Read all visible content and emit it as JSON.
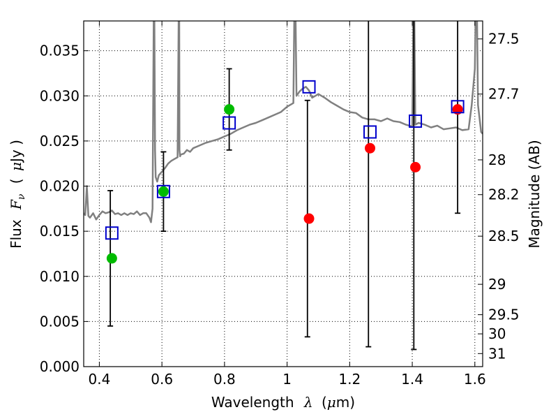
{
  "chart_data": {
    "type": "scatter",
    "title": "",
    "xlabel": {
      "prefix": "Wavelength",
      "symbol": "λ",
      "unit_open": "(",
      "unit_mu": "μ",
      "unit_rest": "m)"
    },
    "ylabel": {
      "prefix": "Flux",
      "symbol": "F",
      "subscript": "ν",
      "unit_open": "(",
      "unit_mu": "μ",
      "unit_rest": "Jy )"
    },
    "y2label": "Magnitude (AB)",
    "xlim": [
      0.35,
      1.625
    ],
    "ylim": [
      0.0,
      0.0383
    ],
    "grid": true,
    "x_ticks": [
      {
        "value": 0.4,
        "label": "0.4"
      },
      {
        "value": 0.6,
        "label": "0.6"
      },
      {
        "value": 0.8,
        "label": "0.8"
      },
      {
        "value": 1.0,
        "label": "1"
      },
      {
        "value": 1.2,
        "label": "1.2"
      },
      {
        "value": 1.4,
        "label": "1.4"
      },
      {
        "value": 1.6,
        "label": "1.6"
      }
    ],
    "y_ticks": [
      {
        "value": 0.0,
        "label": "0.000"
      },
      {
        "value": 0.005,
        "label": "0.005"
      },
      {
        "value": 0.01,
        "label": "0.010"
      },
      {
        "value": 0.015,
        "label": "0.015"
      },
      {
        "value": 0.02,
        "label": "0.020"
      },
      {
        "value": 0.025,
        "label": "0.025"
      },
      {
        "value": 0.03,
        "label": "0.030"
      },
      {
        "value": 0.035,
        "label": "0.035"
      }
    ],
    "y2_ticks": [
      {
        "value": 27.5,
        "label": "27.5"
      },
      {
        "value": 27.7,
        "label": "27.7"
      },
      {
        "value": 28.0,
        "label": "28"
      },
      {
        "value": 28.2,
        "label": "28.2"
      },
      {
        "value": 28.5,
        "label": "28.5"
      },
      {
        "value": 29.0,
        "label": "29"
      },
      {
        "value": 29.5,
        "label": "29.5"
      },
      {
        "value": 30.0,
        "label": "30"
      },
      {
        "value": 31.0,
        "label": "31"
      }
    ],
    "series": [
      {
        "kind": "line",
        "color": "#808080",
        "x": [
          0.35,
          0.355,
          0.36,
          0.365,
          0.37,
          0.38,
          0.39,
          0.4,
          0.41,
          0.42,
          0.43,
          0.44,
          0.45,
          0.46,
          0.47,
          0.48,
          0.49,
          0.5,
          0.51,
          0.52,
          0.53,
          0.54,
          0.55,
          0.56,
          0.565,
          0.57,
          0.575,
          0.578,
          0.58,
          0.585,
          0.59,
          0.6,
          0.61,
          0.62,
          0.63,
          0.64,
          0.65,
          0.655,
          0.656,
          0.658,
          0.66,
          0.67,
          0.68,
          0.69,
          0.7,
          0.72,
          0.74,
          0.76,
          0.78,
          0.8,
          0.82,
          0.84,
          0.86,
          0.88,
          0.9,
          0.92,
          0.94,
          0.96,
          0.98,
          1.0,
          1.02,
          1.025,
          1.03,
          1.04,
          1.05,
          1.06,
          1.07,
          1.08,
          1.09,
          1.1,
          1.12,
          1.14,
          1.16,
          1.18,
          1.2,
          1.22,
          1.24,
          1.26,
          1.28,
          1.3,
          1.32,
          1.34,
          1.36,
          1.38,
          1.4,
          1.405,
          1.41,
          1.42,
          1.44,
          1.46,
          1.48,
          1.5,
          1.52,
          1.54,
          1.56,
          1.58,
          1.59,
          1.6,
          1.605,
          1.61,
          1.62,
          1.625
        ],
        "y": [
          0.017,
          0.0168,
          0.02,
          0.0167,
          0.0165,
          0.017,
          0.0163,
          0.0168,
          0.0172,
          0.017,
          0.0171,
          0.0173,
          0.0169,
          0.017,
          0.0168,
          0.017,
          0.0168,
          0.017,
          0.0169,
          0.0172,
          0.0168,
          0.017,
          0.017,
          0.0165,
          0.016,
          0.0175,
          0.045,
          0.024,
          0.021,
          0.0205,
          0.0212,
          0.0216,
          0.022,
          0.0225,
          0.0228,
          0.023,
          0.0232,
          0.045,
          0.024,
          0.0233,
          0.0235,
          0.0236,
          0.024,
          0.0238,
          0.0242,
          0.0245,
          0.0248,
          0.025,
          0.0252,
          0.0255,
          0.0258,
          0.0262,
          0.0265,
          0.0268,
          0.027,
          0.0273,
          0.0276,
          0.0279,
          0.0282,
          0.0288,
          0.0292,
          0.045,
          0.03,
          0.0305,
          0.0308,
          0.031,
          0.0306,
          0.0298,
          0.03,
          0.0302,
          0.0298,
          0.0293,
          0.0289,
          0.0285,
          0.0282,
          0.0281,
          0.0276,
          0.0274,
          0.0274,
          0.0272,
          0.0275,
          0.0272,
          0.0271,
          0.0268,
          0.0266,
          0.045,
          0.0268,
          0.027,
          0.0268,
          0.0265,
          0.0267,
          0.0263,
          0.0264,
          0.0265,
          0.0262,
          0.0263,
          0.029,
          0.033,
          0.045,
          0.029,
          0.026,
          0.0258
        ]
      },
      {
        "kind": "errorbar",
        "color": "#000000",
        "points": [
          {
            "x": 0.435,
            "low": 0.0045,
            "high": 0.0195
          },
          {
            "x": 0.605,
            "low": 0.015,
            "high": 0.0238
          },
          {
            "x": 0.815,
            "low": 0.024,
            "high": 0.033
          },
          {
            "x": 1.065,
            "low": 0.0033,
            "high": 0.0295
          },
          {
            "x": 1.26,
            "low": 0.0022,
            "high": 0.0383
          },
          {
            "x": 1.405,
            "low": 0.0019,
            "high": 0.0383
          },
          {
            "x": 1.545,
            "low": 0.017,
            "high": 0.0383
          }
        ]
      },
      {
        "kind": "marker-square",
        "color": "#0000cc",
        "x": [
          0.44,
          0.605,
          0.815,
          1.07,
          1.265,
          1.41,
          1.545
        ],
        "y": [
          0.0148,
          0.0194,
          0.027,
          0.031,
          0.026,
          0.0272,
          0.0288
        ]
      },
      {
        "kind": "marker-circle",
        "color": "#00bb00",
        "x": [
          0.44,
          0.605,
          0.815
        ],
        "y": [
          0.012,
          0.0194,
          0.0285
        ]
      },
      {
        "kind": "marker-circle",
        "color": "#ff0000",
        "x": [
          1.07,
          1.265,
          1.41,
          1.545
        ],
        "y": [
          0.0164,
          0.0242,
          0.0221,
          0.0285
        ]
      }
    ]
  }
}
